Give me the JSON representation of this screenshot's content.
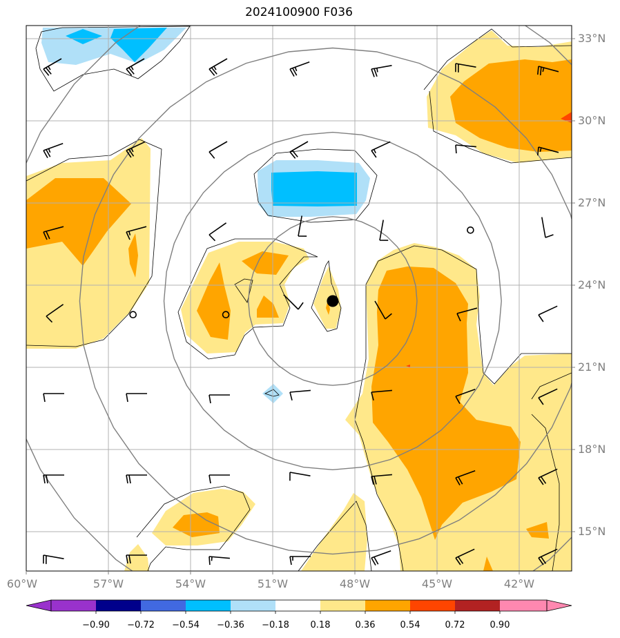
{
  "title": "2024100900 F036",
  "map": {
    "lon_range": [
      -60,
      -40.6
    ],
    "lat_range": [
      13.5,
      33.5
    ],
    "lon_ticks": [
      "60°W",
      "57°W",
      "54°W",
      "51°W",
      "48°W",
      "45°W",
      "42°W"
    ],
    "lat_ticks": [
      "33°N",
      "30°N",
      "27°N",
      "24°N",
      "21°N",
      "18°N",
      "15°N"
    ],
    "grid": true,
    "storm_center": {
      "lon": -49.1,
      "lat": 23.4
    },
    "range_rings_deg": [
      3,
      6,
      9,
      12
    ],
    "calm_points": [
      {
        "lon": -44.2,
        "lat": 26.0
      },
      {
        "lon": -56.2,
        "lat": 22.9
      },
      {
        "lon": -52.9,
        "lat": 22.9
      }
    ]
  },
  "colorbar": {
    "ticks": [
      "−0.90",
      "−0.72",
      "−0.54",
      "−0.36",
      "−0.18",
      "0.18",
      "0.36",
      "0.54",
      "0.72",
      "0.90"
    ],
    "colors": [
      "#9932cc",
      "#00008b",
      "#4169e1",
      "#00bfff",
      "#b0e0f8",
      "#ffffff",
      "#ffe88a",
      "#ffa500",
      "#ff4500",
      "#b22222",
      "#ff88b0"
    ],
    "extend": "both"
  },
  "field_colors": {
    "pos1": "#ffe88a",
    "pos2": "#ffa500",
    "pos3": "#ff4500",
    "neg1": "#b0e0f8",
    "neg2": "#00bfff"
  }
}
